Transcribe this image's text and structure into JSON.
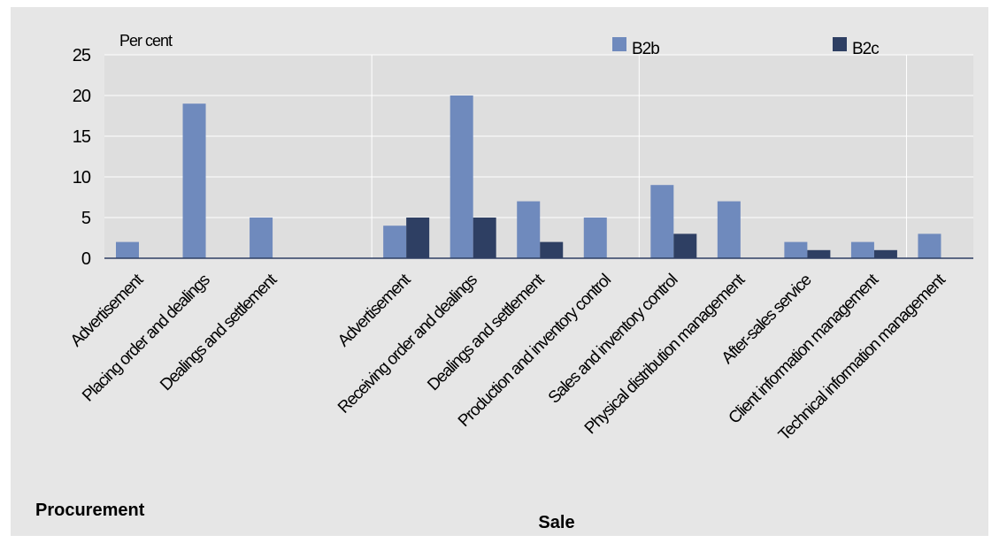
{
  "chart_data": {
    "type": "bar",
    "y_unit_label": "Per cent",
    "ylim": [
      0,
      25
    ],
    "yticks": [
      0,
      5,
      10,
      15,
      20,
      25
    ],
    "grid": true,
    "legend_position": "top-right",
    "categories": [
      "Advertisement",
      "Placing order and dealings",
      "Dealings and settlement",
      "",
      "Advertisement",
      "Receiving order and dealings",
      "Dealings and settlement",
      "Production and inventory control",
      "Sales and inventory control",
      "Physical distribution management",
      "After-sales service",
      "Client information management",
      "Technical information management"
    ],
    "groups": [
      {
        "label": "Procurement"
      },
      {
        "label": "Sale"
      }
    ],
    "series": [
      {
        "name": "B2b",
        "color": "#6f8abd",
        "values": [
          2,
          19,
          5,
          null,
          4,
          20,
          7,
          5,
          9,
          7,
          2,
          2,
          3
        ]
      },
      {
        "name": "B2c",
        "color": "#2e3f63",
        "values": [
          null,
          null,
          null,
          null,
          5,
          5,
          2,
          null,
          3,
          null,
          1,
          1,
          null
        ]
      }
    ]
  }
}
